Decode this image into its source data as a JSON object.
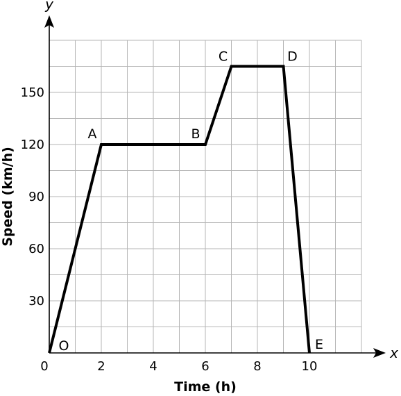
{
  "chart_data": {
    "type": "line",
    "xlabel": "Time (h)",
    "ylabel": "Speed (km/h)",
    "x_axis_var": "x",
    "y_axis_var": "y",
    "origin_label": "0",
    "xlim": [
      0,
      12
    ],
    "ylim": [
      0,
      180
    ],
    "x_ticks": [
      2,
      4,
      6,
      8,
      10
    ],
    "y_ticks": [
      30,
      60,
      90,
      120,
      150
    ],
    "grid": true,
    "grid_x_step": 1,
    "grid_y_step": 15,
    "series": [
      {
        "points": [
          {
            "x": 0,
            "y": 0,
            "label": "O"
          },
          {
            "x": 2,
            "y": 120,
            "label": "A"
          },
          {
            "x": 6,
            "y": 120,
            "label": "B"
          },
          {
            "x": 7,
            "y": 165,
            "label": "C"
          },
          {
            "x": 9,
            "y": 165,
            "label": "D"
          },
          {
            "x": 10,
            "y": 0,
            "label": "E"
          }
        ]
      }
    ]
  }
}
